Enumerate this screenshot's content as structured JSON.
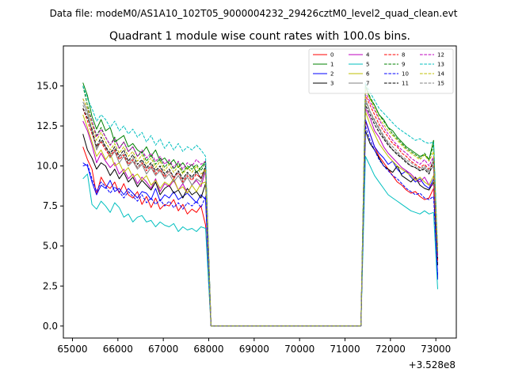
{
  "chart_data": {
    "type": "line",
    "suptitle": "Data file: modeM0/AS1A10_102T05_9000004232_29426cztM0_level2_quad_clean.evt",
    "title": "Quadrant 1 module wise count rates with 100.0s bins.",
    "xlabel": "",
    "ylabel": "",
    "x_offset_label": "+3.528e8",
    "xlim": [
      64800,
      73450
    ],
    "ylim": [
      -0.75,
      17.5
    ],
    "xticks": [
      65000,
      66000,
      67000,
      68000,
      69000,
      70000,
      71000,
      72000,
      73000
    ],
    "yticks": [
      0.0,
      2.5,
      5.0,
      7.5,
      10.0,
      12.5,
      15.0
    ],
    "xtick_labels": [
      "65000",
      "66000",
      "67000",
      "68000",
      "69000",
      "70000",
      "71000",
      "72000",
      "73000"
    ],
    "ytick_labels": [
      "0.0",
      "2.5",
      "5.0",
      "7.5",
      "10.0",
      "12.5",
      "15.0"
    ],
    "grid": false,
    "legend": "top-right",
    "gap_x": [
      68050,
      71350
    ],
    "seg1_x": [
      65230,
      65330,
      65430,
      65530,
      65630,
      65730,
      65830,
      65930,
      66030,
      66130,
      66230,
      66330,
      66430,
      66530,
      66630,
      66730,
      66830,
      66930,
      67030,
      67130,
      67230,
      67330,
      67430,
      67530,
      67630,
      67730,
      67830,
      67930
    ],
    "seg2_x": [
      71450,
      71550,
      71650,
      71750,
      71850,
      71950,
      72050,
      72150,
      72250,
      72350,
      72450,
      72550,
      72650,
      72750,
      72850,
      72950,
      73040
    ],
    "series": [
      {
        "name": "0",
        "color": "#ff0000",
        "dash": "solid",
        "seg1": [
          11.2,
          10.4,
          9.8,
          8.2,
          9.3,
          8.8,
          8.6,
          9.0,
          8.3,
          8.9,
          8.2,
          8.0,
          8.4,
          7.6,
          8.1,
          7.4,
          8.0,
          7.3,
          7.6,
          7.5,
          7.9,
          7.2,
          7.6,
          7.0,
          7.3,
          7.1,
          7.5,
          6.3
        ],
        "seg2": [
          12.8,
          12.0,
          11.2,
          10.6,
          10.2,
          9.8,
          9.4,
          9.0,
          8.8,
          8.5,
          8.3,
          8.4,
          8.1,
          7.9,
          8.0,
          8.6,
          3.0
        ]
      },
      {
        "name": "1",
        "color": "#008000",
        "dash": "solid",
        "seg1": [
          15.2,
          14.4,
          13.1,
          12.3,
          12.9,
          12.2,
          12.4,
          11.5,
          11.7,
          11.9,
          11.2,
          11.4,
          11.0,
          10.8,
          11.2,
          10.6,
          11.0,
          10.3,
          10.5,
          10.1,
          10.4,
          9.9,
          10.2,
          9.8,
          10.1,
          9.6,
          9.9,
          10.3
        ],
        "seg2": [
          15.0,
          14.2,
          13.8,
          13.2,
          12.9,
          12.4,
          12.2,
          11.8,
          11.5,
          11.2,
          11.0,
          10.8,
          10.6,
          10.7,
          10.4,
          11.6,
          4.3
        ]
      },
      {
        "name": "2",
        "color": "#0000ff",
        "dash": "solid",
        "seg1": [
          10.2,
          10.0,
          9.0,
          8.2,
          8.8,
          8.6,
          9.1,
          8.4,
          8.6,
          8.2,
          8.6,
          8.3,
          8.0,
          8.4,
          8.3,
          7.9,
          8.6,
          7.8,
          8.2,
          8.0,
          8.4,
          7.9,
          8.1,
          8.3,
          8.0,
          7.7,
          8.2,
          7.9
        ],
        "seg2": [
          12.9,
          12.0,
          11.2,
          10.8,
          10.5,
          10.1,
          10.3,
          9.8,
          9.5,
          9.7,
          9.3,
          9.0,
          9.2,
          8.8,
          8.6,
          9.2,
          2.9
        ]
      },
      {
        "name": "3",
        "color": "#000000",
        "dash": "solid",
        "seg1": [
          12.0,
          11.0,
          10.5,
          9.8,
          10.2,
          10.0,
          9.4,
          9.8,
          9.2,
          9.6,
          9.0,
          9.3,
          8.7,
          9.1,
          8.8,
          8.5,
          9.0,
          8.2,
          8.6,
          8.8,
          8.3,
          8.5,
          8.0,
          8.6,
          8.2,
          8.4,
          8.0,
          8.9
        ],
        "seg2": [
          12.2,
          11.4,
          11.0,
          10.5,
          10.0,
          9.8,
          9.6,
          10.0,
          9.4,
          9.2,
          9.0,
          9.3,
          8.8,
          8.6,
          8.5,
          9.0,
          3.8
        ]
      },
      {
        "name": "4",
        "color": "#bf00bf",
        "dash": "solid",
        "seg1": [
          12.8,
          12.2,
          11.3,
          10.2,
          10.8,
          10.3,
          9.9,
          10.2,
          9.5,
          9.8,
          9.2,
          9.5,
          8.9,
          9.3,
          9.0,
          8.6,
          9.2,
          8.4,
          8.9,
          8.7,
          9.1,
          8.5,
          8.9,
          8.3,
          8.8,
          9.1,
          8.7,
          9.7
        ],
        "seg2": [
          13.6,
          13.0,
          12.2,
          11.8,
          11.2,
          10.8,
          10.5,
          10.2,
          9.9,
          9.7,
          9.5,
          9.2,
          9.0,
          9.3,
          8.8,
          8.8,
          5.0
        ]
      },
      {
        "name": "5",
        "color": "#00bfbf",
        "dash": "solid",
        "seg1": [
          9.2,
          9.5,
          7.6,
          7.3,
          7.8,
          7.5,
          7.1,
          7.7,
          7.4,
          6.8,
          7.0,
          6.5,
          6.8,
          6.9,
          6.5,
          6.6,
          6.2,
          6.5,
          6.3,
          6.2,
          6.4,
          5.9,
          6.2,
          6.0,
          6.1,
          5.9,
          6.2,
          6.1
        ],
        "seg2": [
          10.6,
          10.0,
          9.4,
          9.0,
          8.6,
          8.2,
          8.0,
          7.8,
          7.6,
          7.4,
          7.2,
          7.1,
          7.0,
          7.2,
          7.0,
          7.1,
          2.3
        ]
      },
      {
        "name": "6",
        "color": "#bfbf00",
        "dash": "solid",
        "seg1": [
          13.2,
          12.4,
          11.5,
          10.6,
          11.0,
          10.4,
          10.8,
          10.0,
          10.2,
          9.6,
          9.9,
          9.3,
          9.5,
          9.1,
          9.4,
          8.8,
          9.1,
          8.6,
          9.0,
          8.8,
          9.2,
          8.5,
          8.7,
          8.3,
          8.8,
          8.4,
          8.9,
          9.0
        ],
        "seg2": [
          13.4,
          12.6,
          12.0,
          11.4,
          11.0,
          10.6,
          10.3,
          10.0,
          9.8,
          9.6,
          9.4,
          9.1,
          9.3,
          9.0,
          8.8,
          9.4,
          4.5
        ]
      },
      {
        "name": "7",
        "color": "#808080",
        "dash": "solid",
        "seg1": [
          14.0,
          13.4,
          12.2,
          11.0,
          11.6,
          11.2,
          10.5,
          10.9,
          10.2,
          10.6,
          10.0,
          10.3,
          9.8,
          10.1,
          9.5,
          9.9,
          9.4,
          9.7,
          9.2,
          9.5,
          9.0,
          9.4,
          8.9,
          9.3,
          8.8,
          9.2,
          9.0,
          9.8
        ],
        "seg2": [
          14.2,
          13.4,
          12.8,
          12.3,
          11.8,
          11.4,
          11.0,
          10.8,
          10.5,
          10.3,
          10.0,
          9.9,
          9.7,
          9.9,
          9.6,
          10.0,
          4.0
        ]
      },
      {
        "name": "8",
        "color": "#ff0000",
        "dash": "dashed",
        "seg1": [
          13.6,
          12.8,
          12.0,
          11.2,
          11.5,
          11.0,
          10.6,
          11.0,
          10.4,
          10.7,
          10.1,
          10.4,
          9.9,
          10.2,
          9.7,
          10.0,
          9.5,
          9.8,
          9.3,
          9.7,
          9.2,
          9.6,
          9.0,
          9.4,
          9.1,
          9.5,
          9.2,
          9.9
        ],
        "seg2": [
          14.4,
          13.8,
          13.2,
          12.6,
          12.2,
          11.8,
          11.4,
          11.2,
          10.8,
          10.6,
          10.3,
          10.1,
          9.9,
          10.1,
          9.8,
          10.2,
          4.1
        ]
      },
      {
        "name": "9",
        "color": "#008000",
        "dash": "dashed",
        "seg1": [
          15.0,
          13.8,
          12.8,
          11.9,
          12.4,
          11.8,
          11.3,
          11.8,
          11.1,
          11.5,
          10.9,
          11.2,
          10.6,
          10.9,
          10.3,
          10.7,
          10.1,
          10.5,
          9.9,
          10.3,
          9.8,
          10.2,
          9.6,
          10.0,
          9.8,
          10.1,
          9.7,
          10.2
        ],
        "seg2": [
          15.1,
          14.3,
          13.8,
          13.2,
          12.8,
          12.4,
          12.0,
          11.7,
          11.4,
          11.1,
          10.9,
          10.7,
          10.5,
          10.8,
          10.4,
          11.3,
          4.6
        ]
      },
      {
        "name": "10",
        "color": "#0000ff",
        "dash": "dashed",
        "seg1": [
          10.0,
          10.1,
          9.2,
          8.4,
          9.0,
          8.7,
          8.3,
          8.7,
          8.4,
          8.0,
          8.4,
          8.1,
          7.8,
          8.2,
          7.7,
          8.0,
          7.6,
          7.9,
          7.5,
          7.8,
          7.4,
          7.7,
          7.3,
          7.7,
          7.5,
          7.8,
          7.4,
          8.1
        ],
        "seg2": [
          12.5,
          11.6,
          11.0,
          10.4,
          10.0,
          9.7,
          9.4,
          9.2,
          8.9,
          8.6,
          8.4,
          8.2,
          8.3,
          8.0,
          7.9,
          8.1,
          3.2
        ]
      },
      {
        "name": "11",
        "color": "#000000",
        "dash": "dashed",
        "seg1": [
          13.6,
          13.0,
          12.3,
          11.2,
          11.8,
          11.2,
          10.8,
          11.2,
          10.6,
          11.0,
          10.3,
          10.7,
          10.1,
          10.4,
          9.9,
          10.2,
          9.7,
          10.0,
          9.5,
          9.8,
          9.3,
          9.7,
          9.2,
          9.6,
          9.3,
          9.7,
          9.2,
          10.0
        ],
        "seg2": [
          13.8,
          13.2,
          12.6,
          12.1,
          11.7,
          11.3,
          11.0,
          10.7,
          10.5,
          10.2,
          10.0,
          9.9,
          9.7,
          9.8,
          9.5,
          10.3,
          4.2
        ]
      },
      {
        "name": "12",
        "color": "#bf00bf",
        "dash": "dashed",
        "seg1": [
          14.2,
          13.6,
          12.8,
          11.8,
          12.3,
          11.8,
          11.3,
          11.7,
          11.1,
          11.5,
          10.9,
          11.2,
          10.6,
          11.0,
          10.5,
          10.8,
          10.3,
          10.6,
          10.1,
          10.4,
          9.9,
          10.3,
          9.8,
          10.2,
          10.0,
          10.4,
          10.1,
          10.3
        ],
        "seg2": [
          14.6,
          14.0,
          13.5,
          12.9,
          12.4,
          12.0,
          11.6,
          11.3,
          11.0,
          10.8,
          10.5,
          10.3,
          10.1,
          10.4,
          10.0,
          10.6,
          4.4
        ]
      },
      {
        "name": "13",
        "color": "#00bfbf",
        "dash": "dashed",
        "seg1": [
          15.0,
          14.2,
          13.6,
          12.8,
          13.2,
          12.9,
          12.4,
          12.8,
          12.2,
          12.5,
          12.0,
          12.3,
          11.8,
          12.1,
          11.5,
          11.9,
          11.3,
          11.7,
          11.1,
          11.5,
          11.0,
          11.4,
          10.9,
          11.2,
          11.0,
          11.3,
          11.0,
          10.6
        ],
        "seg2": [
          15.2,
          14.6,
          14.1,
          13.6,
          13.3,
          13.0,
          12.7,
          12.4,
          12.2,
          12.0,
          11.8,
          11.6,
          11.7,
          11.5,
          11.4,
          11.5,
          4.8
        ]
      },
      {
        "name": "14",
        "color": "#bfbf00",
        "dash": "dashed",
        "seg1": [
          14.2,
          13.6,
          12.6,
          11.6,
          12.1,
          11.5,
          11.0,
          11.4,
          10.8,
          11.2,
          10.6,
          10.9,
          10.3,
          10.7,
          10.1,
          10.5,
          9.9,
          10.3,
          9.7,
          10.1,
          9.6,
          10.0,
          9.5,
          9.9,
          9.6,
          10.0,
          9.5,
          9.8
        ],
        "seg2": [
          14.8,
          14.2,
          13.6,
          13.0,
          12.6,
          12.2,
          11.9,
          11.6,
          11.3,
          11.0,
          10.8,
          10.6,
          10.4,
          10.7,
          10.3,
          10.9,
          4.6
        ]
      },
      {
        "name": "15",
        "color": "#808080",
        "dash": "dashed",
        "seg1": [
          13.8,
          13.2,
          12.1,
          11.1,
          11.6,
          11.1,
          10.7,
          11.1,
          10.5,
          10.8,
          10.2,
          10.5,
          9.9,
          10.3,
          9.8,
          10.1,
          9.6,
          9.9,
          9.4,
          9.7,
          9.3,
          9.6,
          9.1,
          9.5,
          9.2,
          9.6,
          9.3,
          9.6
        ],
        "seg2": [
          14.0,
          13.4,
          12.9,
          12.4,
          11.9,
          11.5,
          11.2,
          10.9,
          10.6,
          10.4,
          10.2,
          10.0,
          9.8,
          10.0,
          9.7,
          10.5,
          4.3
        ]
      }
    ]
  }
}
